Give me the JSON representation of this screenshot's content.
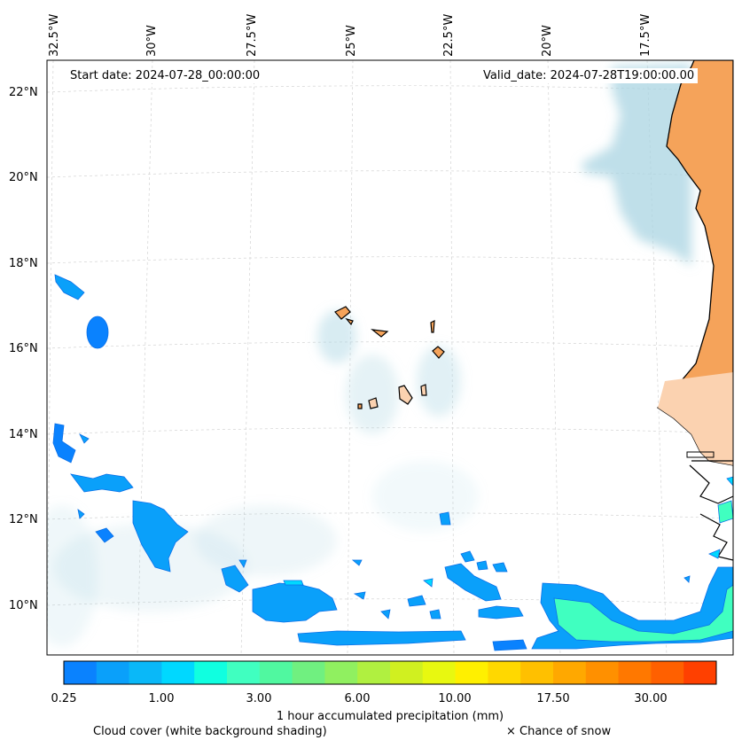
{
  "map": {
    "start_date": "Start date: 2024-07-28_00:00:00",
    "valid_date": "Valid_date: 2024-07-28T19:00:00.00",
    "longitude_labels": [
      "32.5°W",
      "30°W",
      "27.5°W",
      "25°W",
      "22.5°W",
      "20°W",
      "17.5°W"
    ],
    "latitude_labels": [
      "22°N",
      "20°N",
      "18°N",
      "16°N",
      "14°N",
      "12°N",
      "10°N"
    ],
    "colors": {
      "land": "#f5a35a",
      "coast": "#000000",
      "cloud": "#a9d4e2",
      "grid": "#cccccc"
    }
  },
  "colorbar": {
    "title": "1 hour accumulated precipitation (mm)",
    "tick_labels": [
      "0.25",
      "1.00",
      "3.00",
      "6.00",
      "10.00",
      "17.50",
      "30.00"
    ],
    "colors": [
      "#0a82fe",
      "#0aa0fa",
      "#0ab8f8",
      "#00d8ff",
      "#10ffe0",
      "#40ffc0",
      "#50f8a0",
      "#70f080",
      "#90f060",
      "#b0f040",
      "#d0f020",
      "#e8f810",
      "#fff000",
      "#ffd800",
      "#ffc000",
      "#ffa800",
      "#ff9000",
      "#ff7800",
      "#ff6000",
      "#ff4000"
    ]
  },
  "legend": {
    "cloud_cover": "Cloud cover (white background shading)",
    "snow": "× Chance of snow"
  }
}
